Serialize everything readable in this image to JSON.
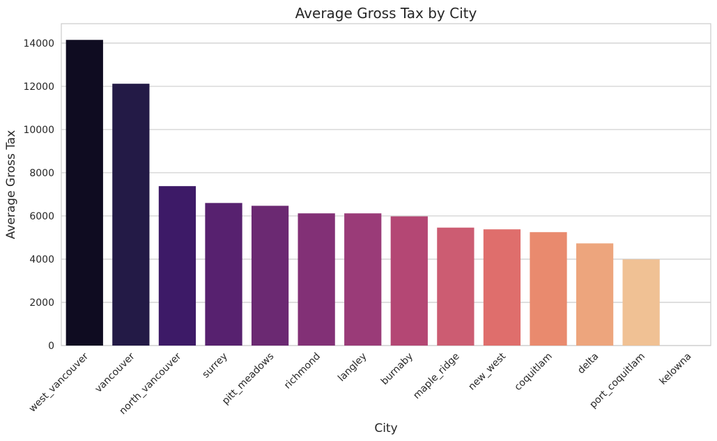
{
  "chart_data": {
    "type": "bar",
    "title": "Average Gross Tax by City",
    "xlabel": "City",
    "ylabel": "Average Gross Tax",
    "categories": [
      "west_vancouver",
      "vancouver",
      "north_vancouver",
      "surrey",
      "pitt_meadows",
      "richmond",
      "langley",
      "burnaby",
      "maple_ridge",
      "new_west",
      "coquitlam",
      "delta",
      "port_coquitlam",
      "kelowna"
    ],
    "values": [
      14150,
      12120,
      7380,
      6600,
      6470,
      6120,
      6120,
      5980,
      5460,
      5380,
      5250,
      4730,
      3990,
      0
    ],
    "colors": [
      "#0f0c21",
      "#231a46",
      "#3d1a67",
      "#57216f",
      "#6b2972",
      "#823076",
      "#9a3b78",
      "#b44774",
      "#cc5c72",
      "#df6e6c",
      "#e98a6e",
      "#eda57d",
      "#f0c194",
      "#fbe4c8"
    ],
    "ylim": [
      0,
      14900
    ],
    "yticks": [
      0,
      2000,
      4000,
      6000,
      8000,
      10000,
      12000,
      14000
    ],
    "grid": true
  }
}
